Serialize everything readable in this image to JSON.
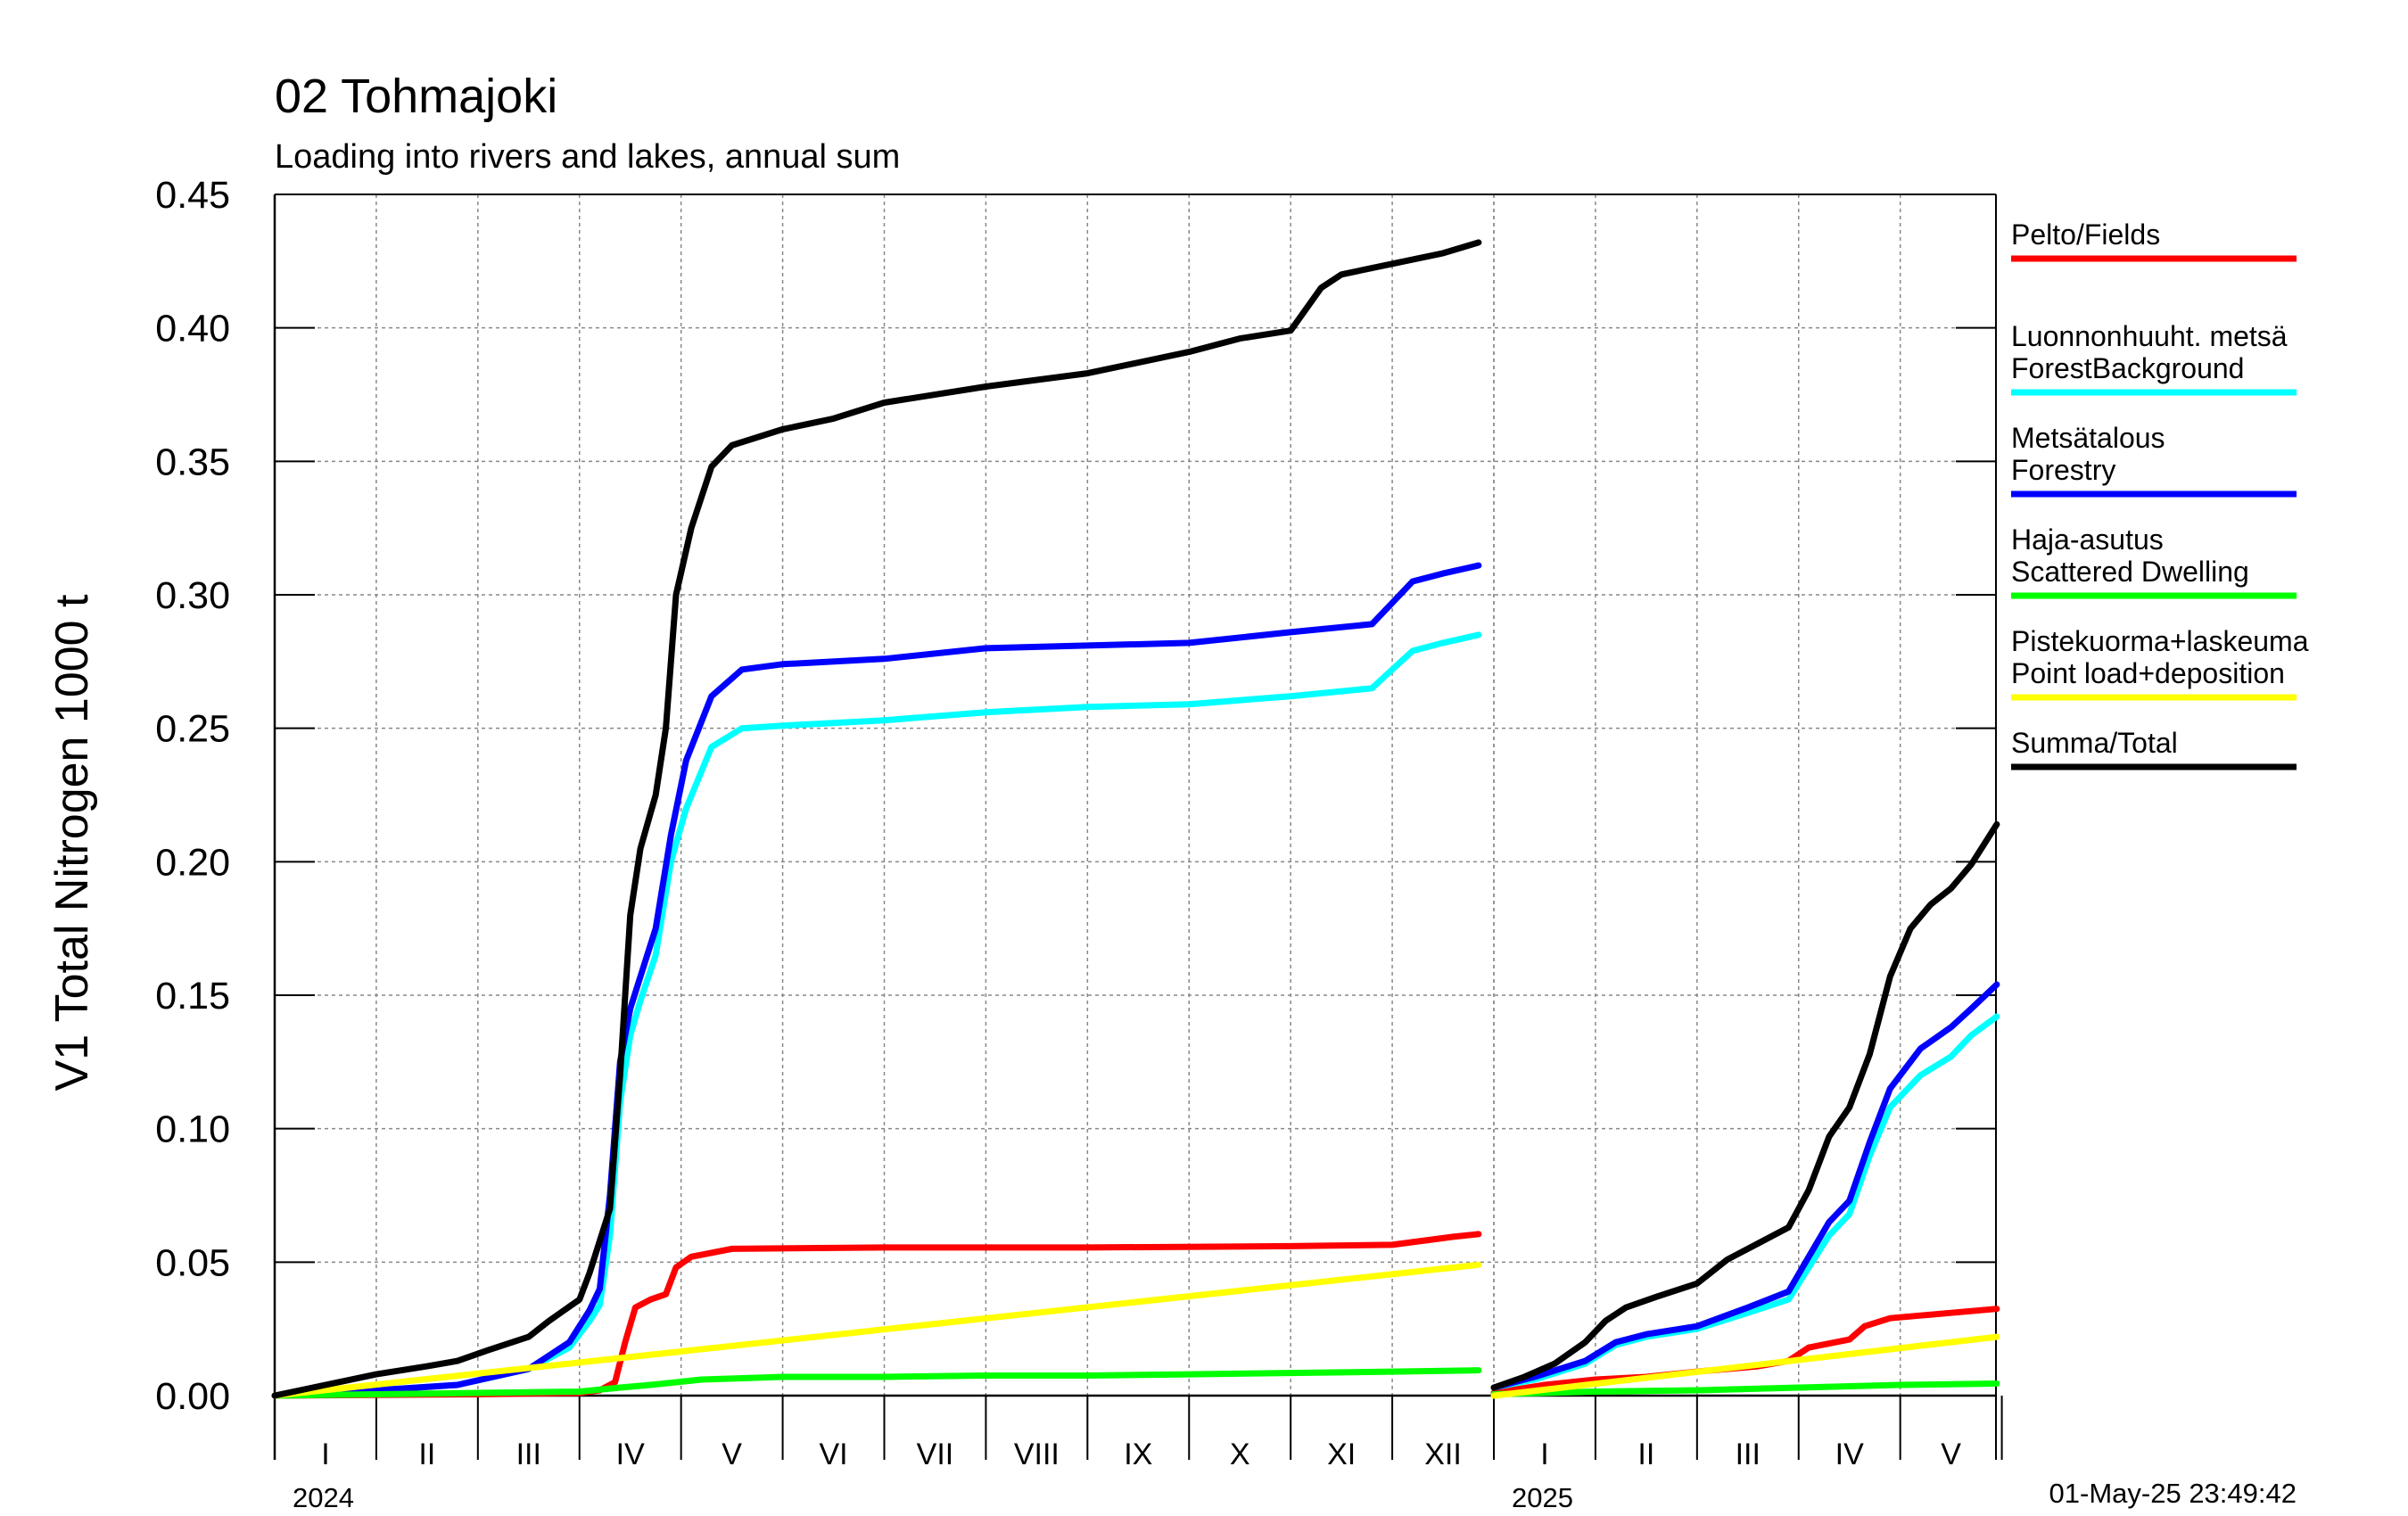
{
  "title": "02 Tohmajoki",
  "subtitle": "Loading into rivers and lakes, annual sum",
  "timestamp": "01-May-25 23:49:42",
  "chart_data": {
    "type": "line",
    "ylabel": "V1 Total Nitrogen 1000 t",
    "ylim": [
      0,
      0.45
    ],
    "yticks": [
      "0.00",
      "0.05",
      "0.10",
      "0.15",
      "0.20",
      "0.25",
      "0.30",
      "0.35",
      "0.40",
      "0.45"
    ],
    "grid": true,
    "legend_position": "right",
    "x_unit": "month (fractional, from start of year)",
    "years": [
      {
        "label": "2024",
        "months": [
          "I",
          "II",
          "III",
          "IV",
          "V",
          "VI",
          "VII",
          "VIII",
          "IX",
          "X",
          "XI",
          "XII"
        ]
      },
      {
        "label": "2025",
        "months": [
          "I",
          "II",
          "III",
          "IV",
          "V"
        ]
      }
    ],
    "series": [
      {
        "name": "Pelto/Fields",
        "color": "#ff0000",
        "segments": [
          [
            [
              0,
              0
            ],
            [
              2,
              0.0005
            ],
            [
              3,
              0.001
            ],
            [
              3.2,
              0.002
            ],
            [
              3.35,
              0.005
            ],
            [
              3.45,
              0.02
            ],
            [
              3.55,
              0.033
            ],
            [
              3.7,
              0.036
            ],
            [
              3.85,
              0.038
            ],
            [
              3.95,
              0.048
            ],
            [
              4.1,
              0.052
            ],
            [
              4.5,
              0.055
            ],
            [
              6,
              0.0555
            ],
            [
              8,
              0.0555
            ],
            [
              10,
              0.056
            ],
            [
              11,
              0.0565
            ],
            [
              11.3,
              0.058
            ],
            [
              11.6,
              0.0595
            ],
            [
              11.85,
              0.0605
            ]
          ],
          [
            [
              0,
              0.001
            ],
            [
              0.5,
              0.004
            ],
            [
              1,
              0.006
            ],
            [
              1.5,
              0.007
            ],
            [
              2,
              0.009
            ],
            [
              2.6,
              0.011
            ],
            [
              2.9,
              0.013
            ],
            [
              3.1,
              0.018
            ],
            [
              3.5,
              0.021
            ],
            [
              3.65,
              0.026
            ],
            [
              3.9,
              0.029
            ],
            [
              4.2,
              0.03
            ],
            [
              4.5,
              0.031
            ],
            [
              4.8,
              0.032
            ],
            [
              4.95,
              0.0325
            ]
          ]
        ]
      },
      {
        "name": "Luonnonhuuht. metsä ForestBackground",
        "color": "#00ffff",
        "segments": [
          [
            [
              0,
              0
            ],
            [
              1,
              0.002
            ],
            [
              1.8,
              0.004
            ],
            [
              2.5,
              0.01
            ],
            [
              2.9,
              0.018
            ],
            [
              3.1,
              0.028
            ],
            [
              3.2,
              0.034
            ],
            [
              3.3,
              0.06
            ],
            [
              3.4,
              0.11
            ],
            [
              3.5,
              0.135
            ],
            [
              3.6,
              0.148
            ],
            [
              3.75,
              0.165
            ],
            [
              3.9,
              0.2
            ],
            [
              4.05,
              0.22
            ],
            [
              4.3,
              0.243
            ],
            [
              4.6,
              0.25
            ],
            [
              5,
              0.251
            ],
            [
              6,
              0.253
            ],
            [
              7,
              0.256
            ],
            [
              8,
              0.258
            ],
            [
              9,
              0.259
            ],
            [
              10,
              0.262
            ],
            [
              10.8,
              0.265
            ],
            [
              11,
              0.272
            ],
            [
              11.2,
              0.279
            ],
            [
              11.5,
              0.282
            ],
            [
              11.85,
              0.285
            ]
          ],
          [
            [
              0,
              0.003
            ],
            [
              0.4,
              0.006
            ],
            [
              0.9,
              0.012
            ],
            [
              1.2,
              0.019
            ],
            [
              1.5,
              0.022
            ],
            [
              2,
              0.025
            ],
            [
              2.5,
              0.031
            ],
            [
              2.9,
              0.036
            ],
            [
              3.1,
              0.048
            ],
            [
              3.3,
              0.06
            ],
            [
              3.5,
              0.068
            ],
            [
              3.7,
              0.09
            ],
            [
              3.9,
              0.108
            ],
            [
              4.2,
              0.12
            ],
            [
              4.5,
              0.127
            ],
            [
              4.7,
              0.135
            ],
            [
              4.95,
              0.142
            ]
          ]
        ]
      },
      {
        "name": "Metsätalous Forestry",
        "color": "#0000ff",
        "segments": [
          [
            [
              0,
              0
            ],
            [
              1,
              0.002
            ],
            [
              1.8,
              0.004
            ],
            [
              2.5,
              0.01
            ],
            [
              2.9,
              0.02
            ],
            [
              3.1,
              0.032
            ],
            [
              3.2,
              0.04
            ],
            [
              3.3,
              0.075
            ],
            [
              3.4,
              0.125
            ],
            [
              3.5,
              0.145
            ],
            [
              3.6,
              0.157
            ],
            [
              3.75,
              0.175
            ],
            [
              3.9,
              0.21
            ],
            [
              4.05,
              0.238
            ],
            [
              4.3,
              0.262
            ],
            [
              4.6,
              0.272
            ],
            [
              5,
              0.274
            ],
            [
              6,
              0.276
            ],
            [
              7,
              0.28
            ],
            [
              8,
              0.281
            ],
            [
              9,
              0.282
            ],
            [
              10,
              0.286
            ],
            [
              10.8,
              0.289
            ],
            [
              11,
              0.297
            ],
            [
              11.2,
              0.305
            ],
            [
              11.5,
              0.308
            ],
            [
              11.85,
              0.311
            ]
          ],
          [
            [
              0,
              0.003
            ],
            [
              0.4,
              0.007
            ],
            [
              0.9,
              0.013
            ],
            [
              1.2,
              0.02
            ],
            [
              1.5,
              0.023
            ],
            [
              2,
              0.026
            ],
            [
              2.5,
              0.033
            ],
            [
              2.9,
              0.039
            ],
            [
              3.1,
              0.052
            ],
            [
              3.3,
              0.065
            ],
            [
              3.5,
              0.073
            ],
            [
              3.7,
              0.095
            ],
            [
              3.9,
              0.115
            ],
            [
              4.2,
              0.13
            ],
            [
              4.5,
              0.138
            ],
            [
              4.7,
              0.145
            ],
            [
              4.95,
              0.154
            ]
          ]
        ]
      },
      {
        "name": "Haja-asutus Scattered Dwelling",
        "color": "#00ff00",
        "segments": [
          [
            [
              0,
              0
            ],
            [
              1,
              0.0005
            ],
            [
              2,
              0.001
            ],
            [
              3,
              0.0015
            ],
            [
              3.4,
              0.003
            ],
            [
              3.7,
              0.004
            ],
            [
              4.2,
              0.006
            ],
            [
              5,
              0.007
            ],
            [
              6,
              0.007
            ],
            [
              7,
              0.0075
            ],
            [
              8,
              0.0075
            ],
            [
              9,
              0.008
            ],
            [
              10,
              0.0085
            ],
            [
              11,
              0.009
            ],
            [
              11.85,
              0.0095
            ]
          ],
          [
            [
              0,
              0.0005
            ],
            [
              1,
              0.0015
            ],
            [
              2,
              0.002
            ],
            [
              3,
              0.003
            ],
            [
              4,
              0.004
            ],
            [
              4.95,
              0.0045
            ]
          ]
        ]
      },
      {
        "name": "Pistekuorma+laskeuma Point load+deposition",
        "color": "#ffff00",
        "segments": [
          [
            [
              0,
              0
            ],
            [
              11.85,
              0.049
            ]
          ],
          [
            [
              0,
              0
            ],
            [
              4.95,
              0.022
            ]
          ]
        ]
      },
      {
        "name": "Summa/Total",
        "color": "#000000",
        "segments": [
          [
            [
              0,
              0
            ],
            [
              0.5,
              0.004
            ],
            [
              1,
              0.008
            ],
            [
              1.5,
              0.011
            ],
            [
              1.8,
              0.013
            ],
            [
              2.1,
              0.017
            ],
            [
              2.5,
              0.022
            ],
            [
              2.7,
              0.028
            ],
            [
              3,
              0.036
            ],
            [
              3.1,
              0.046
            ],
            [
              3.2,
              0.058
            ],
            [
              3.3,
              0.07
            ],
            [
              3.4,
              0.12
            ],
            [
              3.5,
              0.18
            ],
            [
              3.6,
              0.205
            ],
            [
              3.75,
              0.225
            ],
            [
              3.85,
              0.25
            ],
            [
              3.95,
              0.3
            ],
            [
              4.1,
              0.325
            ],
            [
              4.3,
              0.348
            ],
            [
              4.5,
              0.356
            ],
            [
              5,
              0.362
            ],
            [
              5.5,
              0.366
            ],
            [
              6,
              0.372
            ],
            [
              7,
              0.378
            ],
            [
              8,
              0.383
            ],
            [
              9,
              0.391
            ],
            [
              9.5,
              0.396
            ],
            [
              10,
              0.399
            ],
            [
              10.3,
              0.415
            ],
            [
              10.5,
              0.42
            ],
            [
              11,
              0.424
            ],
            [
              11.5,
              0.428
            ],
            [
              11.85,
              0.432
            ]
          ],
          [
            [
              0,
              0.003
            ],
            [
              0.3,
              0.007
            ],
            [
              0.6,
              0.012
            ],
            [
              0.9,
              0.02
            ],
            [
              1.1,
              0.028
            ],
            [
              1.3,
              0.033
            ],
            [
              1.6,
              0.037
            ],
            [
              2,
              0.042
            ],
            [
              2.3,
              0.051
            ],
            [
              2.6,
              0.057
            ],
            [
              2.9,
              0.063
            ],
            [
              3.1,
              0.077
            ],
            [
              3.3,
              0.097
            ],
            [
              3.5,
              0.108
            ],
            [
              3.7,
              0.128
            ],
            [
              3.9,
              0.157
            ],
            [
              4.1,
              0.175
            ],
            [
              4.3,
              0.184
            ],
            [
              4.5,
              0.19
            ],
            [
              4.7,
              0.199
            ],
            [
              4.95,
              0.214
            ]
          ]
        ]
      }
    ]
  }
}
